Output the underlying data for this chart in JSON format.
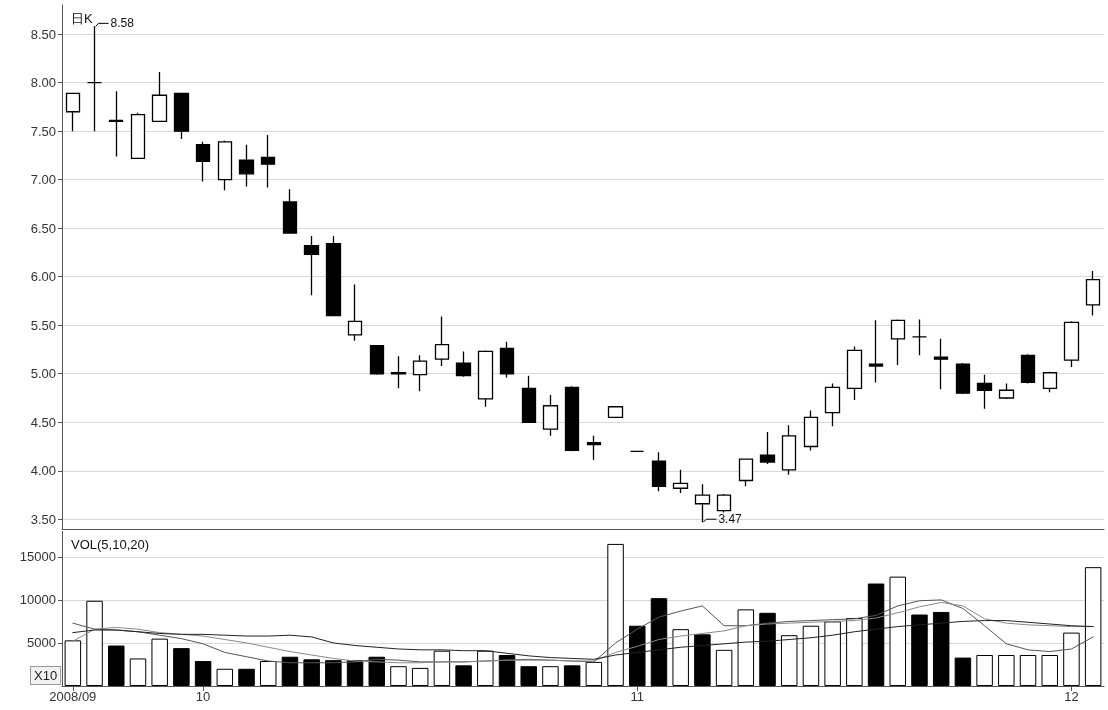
{
  "chart_data": [
    {
      "type": "candlestick",
      "title": "日K",
      "categories": [
        "2008/09",
        null,
        null,
        null,
        null,
        null,
        "10",
        null,
        null,
        null,
        null,
        null,
        null,
        null,
        null,
        null,
        null,
        null,
        null,
        null,
        null,
        null,
        null,
        null,
        null,
        null,
        "11",
        null,
        null,
        null,
        null,
        null,
        null,
        null,
        null,
        null,
        null,
        null,
        null,
        null,
        null,
        null,
        null,
        null,
        null,
        null,
        "12",
        null
      ],
      "ohlc": [
        [
          7.7,
          7.89,
          7.5,
          7.89
        ],
        [
          8.0,
          8.58,
          7.5,
          8.0
        ],
        [
          7.61,
          7.91,
          7.24,
          7.6
        ],
        [
          7.22,
          7.69,
          7.22,
          7.67
        ],
        [
          7.6,
          8.11,
          7.6,
          7.87
        ],
        [
          7.89,
          7.89,
          7.42,
          7.5
        ],
        [
          7.36,
          7.39,
          6.98,
          7.19
        ],
        [
          7.0,
          7.4,
          6.89,
          7.39
        ],
        [
          7.2,
          7.36,
          6.93,
          7.06
        ],
        [
          7.23,
          7.46,
          6.92,
          7.16
        ],
        [
          6.77,
          6.9,
          6.45,
          6.45
        ],
        [
          6.32,
          6.42,
          5.81,
          6.23
        ],
        [
          6.34,
          6.42,
          5.6,
          5.6
        ],
        [
          5.4,
          5.92,
          5.34,
          5.54
        ],
        [
          5.29,
          5.29,
          4.99,
          5.0
        ],
        [
          5.01,
          5.18,
          4.85,
          5.0
        ],
        [
          4.99,
          5.19,
          4.82,
          5.13
        ],
        [
          5.15,
          5.59,
          5.08,
          5.3
        ],
        [
          5.11,
          5.23,
          4.97,
          4.98
        ],
        [
          4.74,
          5.24,
          4.66,
          5.23
        ],
        [
          5.26,
          5.33,
          4.96,
          5.0
        ],
        [
          4.85,
          4.98,
          4.5,
          4.5
        ],
        [
          4.43,
          4.78,
          4.36,
          4.67
        ],
        [
          4.86,
          4.87,
          4.2,
          4.21
        ],
        [
          4.29,
          4.36,
          4.11,
          4.27
        ],
        [
          4.55,
          4.66,
          4.55,
          4.66
        ],
        [
          4.2,
          4.2,
          4.2,
          4.2
        ],
        [
          4.1,
          4.19,
          3.79,
          3.84
        ],
        [
          3.82,
          4.01,
          3.77,
          3.87
        ],
        [
          3.66,
          3.86,
          3.47,
          3.75
        ],
        [
          3.59,
          3.76,
          3.57,
          3.75
        ],
        [
          3.9,
          4.12,
          3.84,
          4.12
        ],
        [
          4.16,
          4.4,
          4.07,
          4.09
        ],
        [
          4.01,
          4.47,
          3.96,
          4.36
        ],
        [
          4.25,
          4.62,
          4.21,
          4.55
        ],
        [
          4.6,
          4.9,
          4.46,
          4.86
        ],
        [
          4.85,
          5.28,
          4.73,
          5.24
        ],
        [
          5.1,
          5.55,
          4.91,
          5.08
        ],
        [
          5.36,
          5.56,
          5.09,
          5.55
        ],
        [
          5.38,
          5.56,
          5.19,
          5.38
        ],
        [
          5.17,
          5.36,
          4.84,
          5.15
        ],
        [
          5.1,
          5.11,
          4.79,
          4.8
        ],
        [
          4.9,
          4.99,
          4.64,
          4.83
        ],
        [
          4.75,
          4.9,
          4.74,
          4.83
        ],
        [
          5.19,
          5.2,
          4.9,
          4.91
        ],
        [
          4.85,
          5.02,
          4.81,
          5.01
        ],
        [
          5.14,
          5.54,
          5.07,
          5.53
        ],
        [
          5.71,
          6.06,
          5.6,
          5.97
        ]
      ],
      "colors": [
        "#ffffff",
        "#000000",
        "#000000",
        "#ffffff",
        "#ffffff",
        "#000000",
        "#000000",
        "#ffffff",
        "#000000",
        "#000000",
        "#000000",
        "#000000",
        "#000000",
        "#ffffff",
        "#000000",
        "#000000",
        "#ffffff",
        "#ffffff",
        "#000000",
        "#ffffff",
        "#000000",
        "#000000",
        "#ffffff",
        "#000000",
        "#000000",
        "#ffffff",
        "#000000",
        "#000000",
        "#ffffff",
        "#ffffff",
        "#ffffff",
        "#ffffff",
        "#000000",
        "#ffffff",
        "#ffffff",
        "#ffffff",
        "#ffffff",
        "#000000",
        "#ffffff",
        "#000000",
        "#000000",
        "#000000",
        "#000000",
        "#ffffff",
        "#000000",
        "#ffffff",
        "#ffffff",
        "#ffffff"
      ],
      "ylim": [
        3.4,
        8.8
      ],
      "yticks": [
        {
          "value": 3.5,
          "label": "3.50"
        },
        {
          "value": 4.0,
          "label": "4.00"
        },
        {
          "value": 4.5,
          "label": "4.50"
        },
        {
          "value": 5.0,
          "label": "5.00"
        },
        {
          "value": 5.5,
          "label": "5.50"
        },
        {
          "value": 6.0,
          "label": "6.00"
        },
        {
          "value": 6.5,
          "label": "6.50"
        },
        {
          "value": 7.0,
          "label": "7.00"
        },
        {
          "value": 7.5,
          "label": "7.50"
        },
        {
          "value": 8.0,
          "label": "8.00"
        },
        {
          "value": 8.5,
          "label": "8.50"
        }
      ],
      "grid": "y",
      "tick_labels": "y",
      "annotations": [
        "8.58",
        "3.47"
      ]
    },
    {
      "type": "bar",
      "title": "VOL(5,10,20)",
      "categories": [
        "2008/09",
        null,
        null,
        null,
        null,
        null,
        "10",
        null,
        null,
        null,
        null,
        null,
        null,
        null,
        null,
        null,
        null,
        null,
        null,
        null,
        null,
        null,
        null,
        null,
        null,
        null,
        "11",
        null,
        null,
        null,
        null,
        null,
        null,
        null,
        null,
        null,
        null,
        null,
        null,
        null,
        null,
        null,
        null,
        null,
        null,
        null,
        "12",
        null
      ],
      "series": [
        {
          "type": "bar",
          "values": [
            5300,
            9900,
            4700,
            3200,
            5500,
            4400,
            2900,
            2000,
            2000,
            2900,
            3400,
            3100,
            3000,
            3000,
            3400,
            2300,
            2100,
            4100,
            2400,
            4100,
            3600,
            2300,
            2300,
            2400,
            2800,
            16500,
            7000,
            10200,
            6600,
            6000,
            4200,
            8900,
            8500,
            5900,
            7000,
            7500,
            7900,
            11900,
            12700,
            8300,
            8600,
            3300,
            3600,
            3600,
            3600,
            3600,
            6200,
            13800
          ],
          "colors": [
            "#ffffff",
            "#ffffff",
            "#000000",
            "#ffffff",
            "#ffffff",
            "#000000",
            "#000000",
            "#ffffff",
            "#000000",
            "#ffffff",
            "#000000",
            "#000000",
            "#000000",
            "#000000",
            "#000000",
            "#ffffff",
            "#ffffff",
            "#ffffff",
            "#000000",
            "#ffffff",
            "#000000",
            "#000000",
            "#ffffff",
            "#000000",
            "#ffffff",
            "#ffffff",
            "#000000",
            "#000000",
            "#ffffff",
            "#000000",
            "#ffffff",
            "#ffffff",
            "#000000",
            "#ffffff",
            "#ffffff",
            "#ffffff",
            "#ffffff",
            "#000000",
            "#ffffff",
            "#000000",
            "#000000",
            "#000000",
            "#ffffff",
            "#ffffff",
            "#ffffff",
            "#ffffff",
            "#ffffff",
            "#ffffff"
          ]
        },
        {
          "type": "line",
          "color": "#555555",
          "values": [
            7300,
            6600,
            6500,
            6300,
            5900,
            5500,
            4900,
            3900,
            3400,
            2900,
            2700,
            2700,
            2700,
            2800,
            3100,
            3000,
            2800,
            2800,
            2800,
            2900,
            3000,
            3100,
            3000,
            2900,
            2800,
            5000,
            6600,
            8000,
            8700,
            9300,
            7000,
            7000,
            7300,
            7500,
            7600,
            7700,
            7800,
            8200,
            9300,
            9900,
            10000,
            9000,
            7000,
            4900,
            4200,
            4000,
            4300,
            5700
          ]
        },
        {
          "type": "line",
          "color": "#888888",
          "values": [
            5200,
            6600,
            6800,
            6600,
            6200,
            6000,
            5800,
            5400,
            5000,
            4500,
            4000,
            3600,
            3200,
            2900,
            2800,
            2700,
            2700,
            2800,
            2800,
            2900,
            3000,
            3000,
            3000,
            2900,
            2900,
            3900,
            4600,
            5400,
            5800,
            6100,
            6400,
            7000,
            7200,
            7300,
            7400,
            7500,
            7600,
            7900,
            8500,
            9200,
            9700,
            9300,
            7800,
            7300,
            7100,
            7000,
            6900,
            6900
          ]
        },
        {
          "type": "line",
          "color": "#222222",
          "values": [
            6200,
            6500,
            6500,
            6300,
            6100,
            6000,
            6000,
            5900,
            5800,
            5800,
            5900,
            5700,
            5000,
            4700,
            4500,
            4300,
            4200,
            4200,
            4100,
            4100,
            3800,
            3500,
            3300,
            3200,
            3100,
            3600,
            3900,
            4200,
            4500,
            4700,
            4900,
            5100,
            5200,
            5400,
            5600,
            5900,
            6300,
            6600,
            6900,
            7100,
            7300,
            7500,
            7600,
            7600,
            7400,
            7200,
            7000,
            6900
          ]
        }
      ],
      "ylim": [
        0,
        18000
      ],
      "yticks": [
        5000,
        10000,
        15000
      ],
      "grid": "y",
      "marker": "none",
      "annotations": [
        "X10"
      ]
    }
  ]
}
